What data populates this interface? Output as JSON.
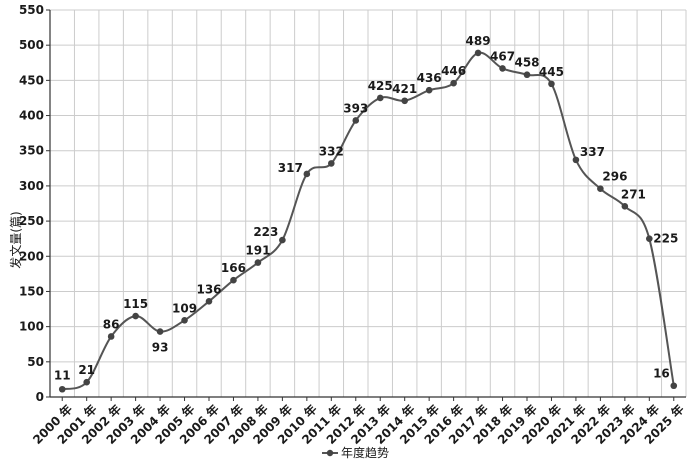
{
  "chart_data": {
    "type": "line",
    "title": "",
    "xlabel": "",
    "ylabel": "发文量(篇)",
    "ylim": [
      0,
      550
    ],
    "yticks": [
      0,
      50,
      100,
      150,
      200,
      250,
      300,
      350,
      400,
      450,
      500,
      550
    ],
    "grid": true,
    "legend_position": "bottom",
    "categories": [
      "2000 年",
      "2001 年",
      "2002 年",
      "2003 年",
      "2004 年",
      "2005 年",
      "2006 年",
      "2007 年",
      "2008 年",
      "2009 年",
      "2010 年",
      "2011 年",
      "2012 年",
      "2013 年",
      "2014 年",
      "2015 年",
      "2016 年",
      "2017 年",
      "2018 年",
      "2019 年",
      "2020 年",
      "2021 年",
      "2022 年",
      "2023 年",
      "2024 年",
      "2025 年"
    ],
    "series": [
      {
        "name": "年度趋势",
        "values": [
          11,
          21,
          86,
          115,
          93,
          109,
          136,
          166,
          191,
          223,
          317,
          332,
          393,
          425,
          421,
          436,
          446,
          489,
          467,
          458,
          445,
          337,
          296,
          271,
          225,
          16
        ]
      }
    ],
    "colors": {
      "line": "#555555",
      "marker": "#444444",
      "grid": "#cccccc"
    }
  }
}
